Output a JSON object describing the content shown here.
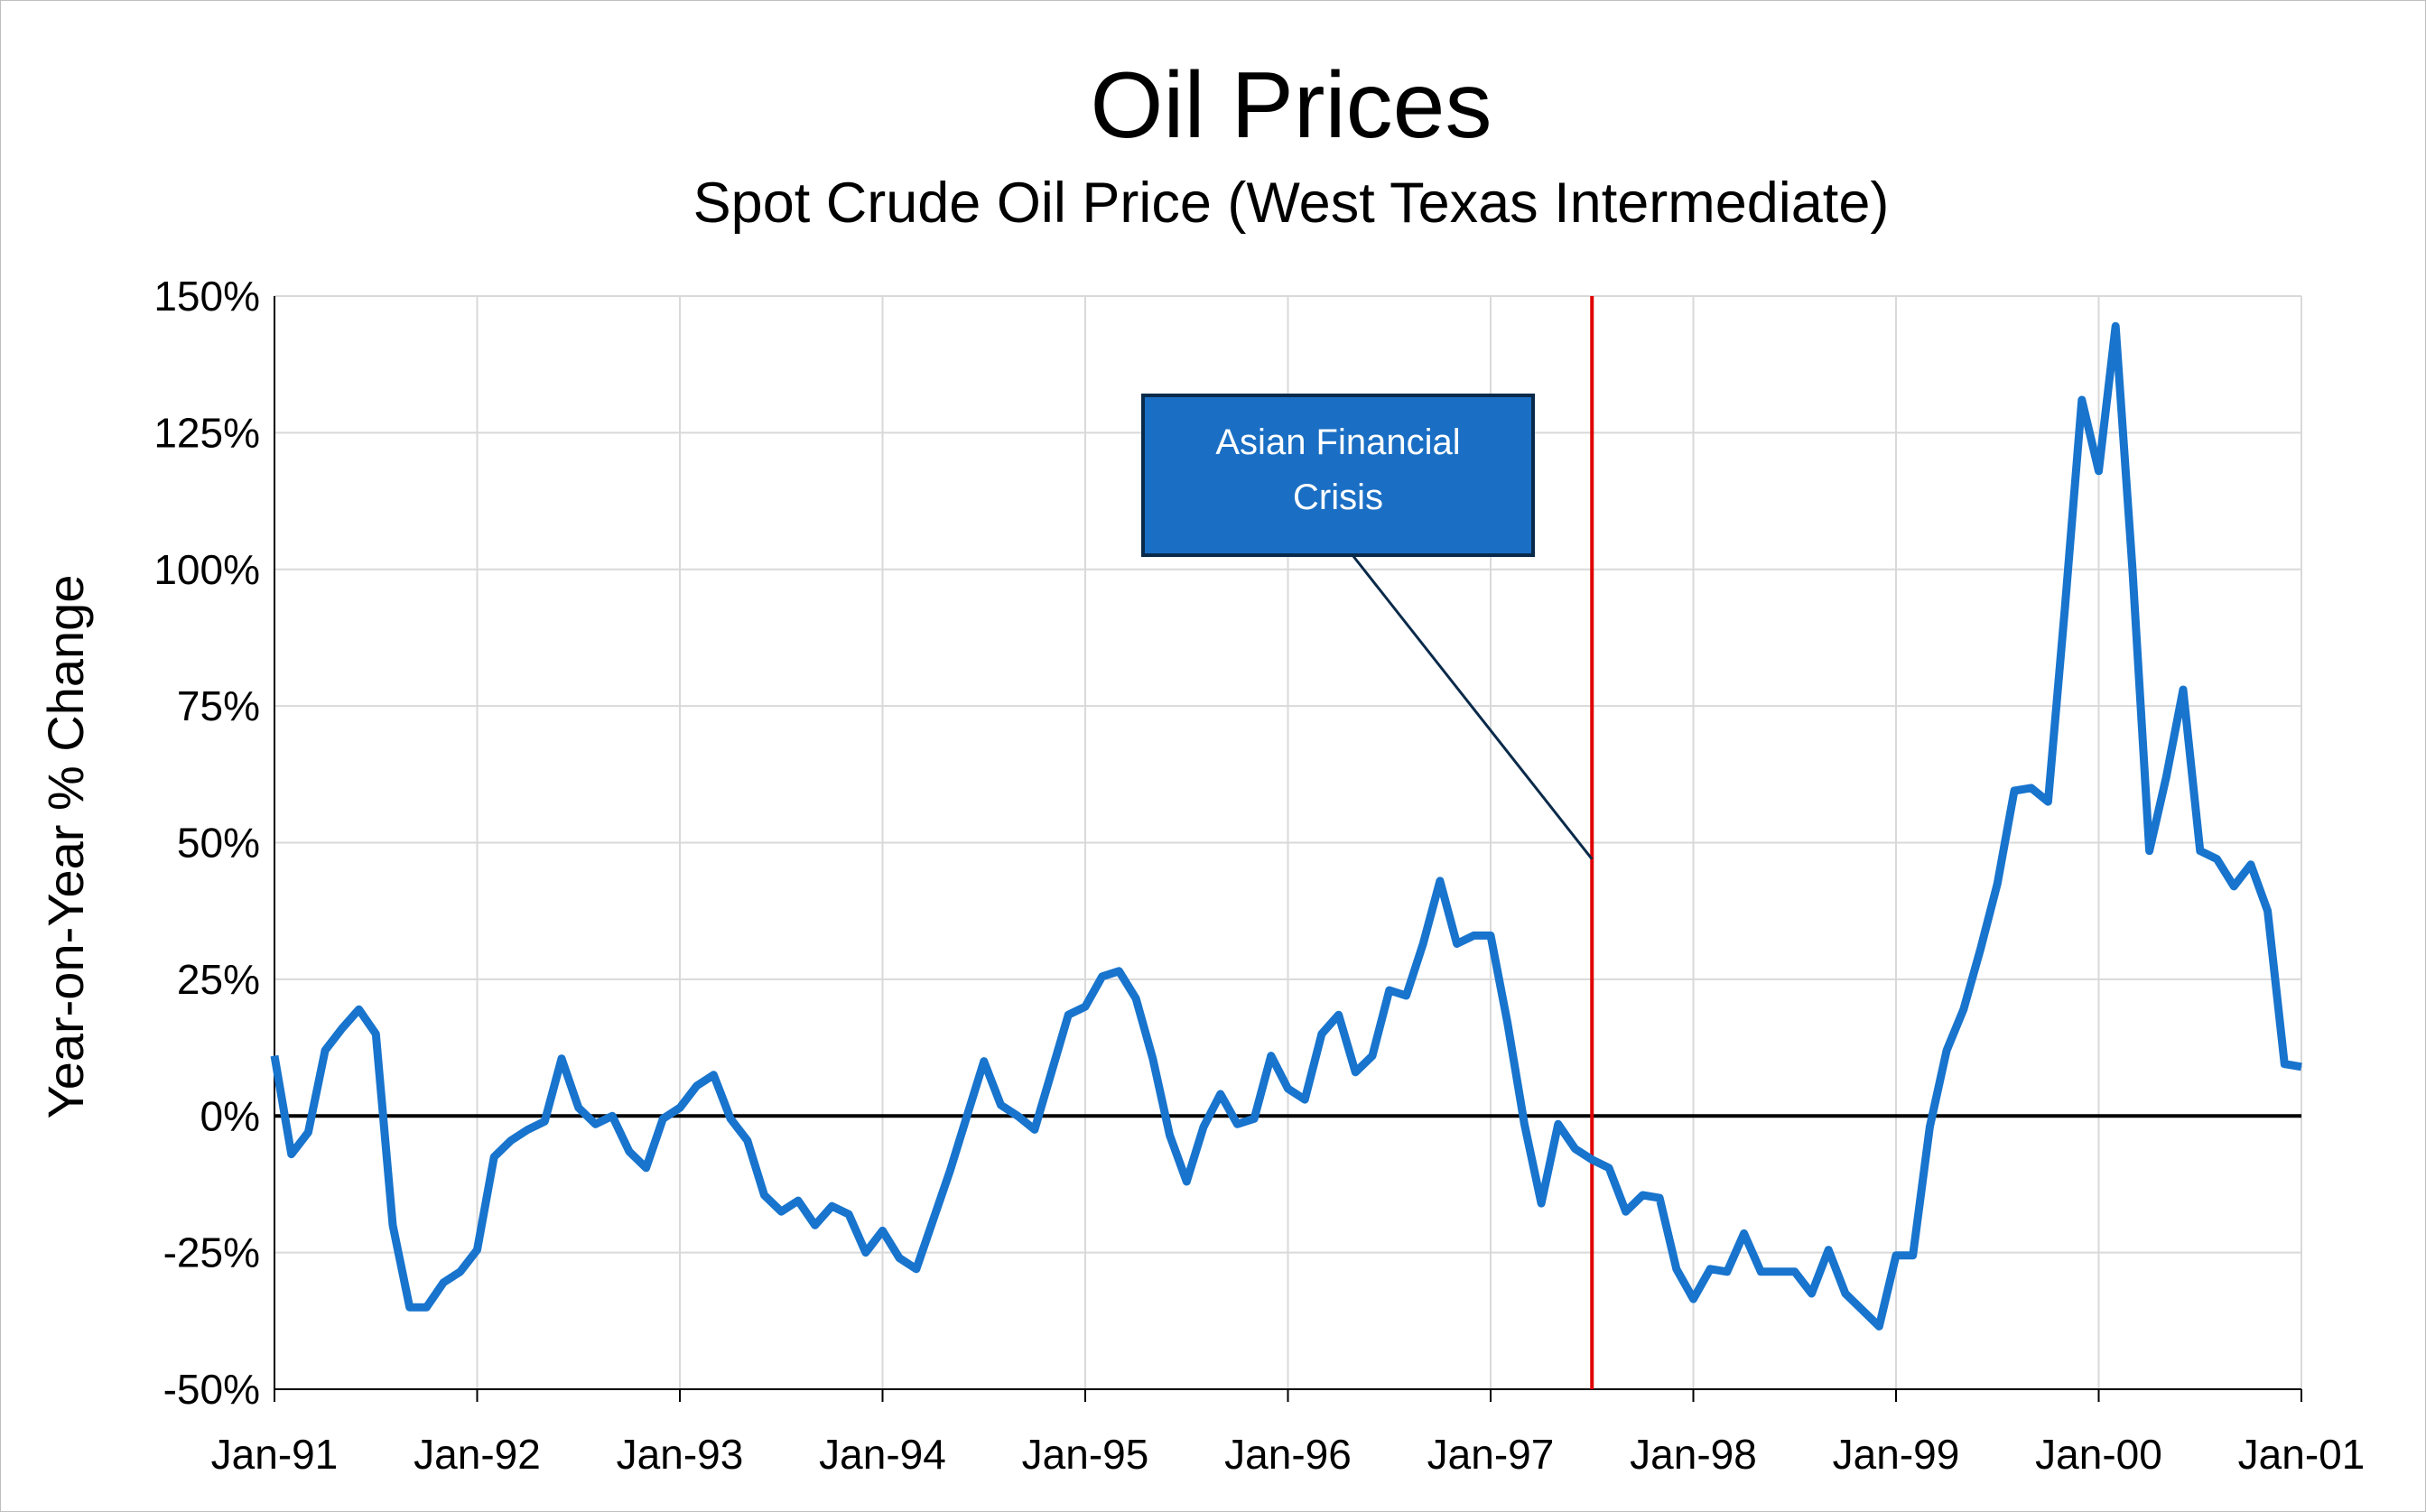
{
  "chart_data": {
    "type": "line",
    "title": "Oil Prices",
    "subtitle": "Spot Crude Oil Price (West Texas Intermediate)",
    "xlabel": "",
    "ylabel": "Year-on-Year % Change",
    "ylim": [
      -50,
      150
    ],
    "y_ticks": [
      -50,
      -25,
      0,
      25,
      50,
      75,
      100,
      125,
      150
    ],
    "y_tick_labels": [
      "-50%",
      "-25%",
      "0%",
      "25%",
      "50%",
      "75%",
      "100%",
      "125%",
      "150%"
    ],
    "x_ticks": [
      "1991-01",
      "1992-01",
      "1993-01",
      "1994-01",
      "1995-01",
      "1996-01",
      "1997-01",
      "1998-01",
      "1999-01",
      "2000-01",
      "2001-01"
    ],
    "x_tick_labels": [
      "Jan-91",
      "Jan-92",
      "Jan-93",
      "Jan-94",
      "Jan-95",
      "Jan-96",
      "Jan-97",
      "Jan-98",
      "Jan-99",
      "Jan-00",
      "Jan-01"
    ],
    "grid": true,
    "legend": "none",
    "colors": {
      "series": "#1874CD",
      "event_line": "#E00000",
      "zero_line": "#000000",
      "grid": "#D9D9D9",
      "annotation_box": "#1A6FC4",
      "annotation_border": "#0A2A4A"
    },
    "x": [
      "1991-01",
      "1991-02",
      "1991-03",
      "1991-04",
      "1991-05",
      "1991-06",
      "1991-07",
      "1991-08",
      "1991-09",
      "1991-10",
      "1991-11",
      "1991-12",
      "1992-01",
      "1992-02",
      "1992-03",
      "1992-04",
      "1992-05",
      "1992-06",
      "1992-07",
      "1992-08",
      "1992-09",
      "1992-10",
      "1992-11",
      "1992-12",
      "1993-01",
      "1993-02",
      "1993-03",
      "1993-04",
      "1993-05",
      "1993-06",
      "1993-07",
      "1993-08",
      "1993-09",
      "1993-10",
      "1993-11",
      "1993-12",
      "1994-01",
      "1994-02",
      "1994-03",
      "1994-04",
      "1994-05",
      "1994-06",
      "1994-07",
      "1994-08",
      "1994-09",
      "1994-10",
      "1994-11",
      "1994-12",
      "1995-01",
      "1995-02",
      "1995-03",
      "1995-04",
      "1995-05",
      "1995-06",
      "1995-07",
      "1995-08",
      "1995-09",
      "1995-10",
      "1995-11",
      "1995-12",
      "1996-01",
      "1996-02",
      "1996-03",
      "1996-04",
      "1996-05",
      "1996-06",
      "1996-07",
      "1996-08",
      "1996-09",
      "1996-10",
      "1996-11",
      "1996-12",
      "1997-01",
      "1997-02",
      "1997-03",
      "1997-04",
      "1997-05",
      "1997-06",
      "1997-07",
      "1997-08",
      "1997-09",
      "1997-10",
      "1997-11",
      "1997-12",
      "1998-01",
      "1998-02",
      "1998-03",
      "1998-04",
      "1998-05",
      "1998-06",
      "1998-07",
      "1998-08",
      "1998-09",
      "1998-10",
      "1998-11",
      "1998-12",
      "1999-01",
      "1999-02",
      "1999-03",
      "1999-04",
      "1999-05",
      "1999-06",
      "1999-07",
      "1999-08",
      "1999-09",
      "1999-10",
      "1999-11",
      "1999-12",
      "2000-01",
      "2000-02",
      "2000-03",
      "2000-04",
      "2000-05",
      "2000-06",
      "2000-07",
      "2000-08",
      "2000-09",
      "2000-10",
      "2000-11",
      "2000-12",
      "2001-01"
    ],
    "series": [
      {
        "values": [
          11,
          -7,
          -3,
          12,
          16,
          19.5,
          15,
          -20,
          -35,
          -35,
          -30.5,
          -28.5,
          -24.5,
          -7.5,
          -4.5,
          -2.5,
          -1,
          10.5,
          1.5,
          -1.5,
          0,
          -6.5,
          -9.5,
          -0.5,
          1.5,
          5.5,
          7.5,
          -0.5,
          -4.5,
          -14.5,
          -17.5,
          -15.5,
          -20,
          -16.5,
          -18,
          -25,
          -21,
          -26,
          -28,
          -19,
          -10,
          0,
          10,
          2,
          0,
          -2.5,
          8,
          18.5,
          20,
          25.5,
          26.5,
          21.5,
          10.5,
          -3.5,
          -12,
          -2,
          4,
          -1.5,
          -0.5,
          11,
          5,
          3,
          15,
          18.5,
          8,
          11,
          23,
          22,
          31.5,
          43,
          31.5,
          33,
          33,
          17,
          -1.5,
          -16,
          -1.5,
          -6,
          -8,
          -9.5,
          -17.5,
          -14.5,
          -15,
          -28,
          -33.5,
          -28,
          -28.5,
          -21.5,
          -28.5,
          -28.5,
          -28.5,
          -32.5,
          -24.5,
          -32.5,
          -35.5,
          -38.5,
          -25.5,
          -25.5,
          -2,
          12,
          19.5,
          30.5,
          42.5,
          59.5,
          60,
          57.5,
          93,
          131,
          118,
          144.5,
          100,
          48.5,
          62,
          78,
          48.5,
          47,
          42,
          46,
          37.5,
          9.5,
          9
        ]
      }
    ],
    "event_line": {
      "x": "1997-07"
    },
    "annotation": {
      "text_line1": "Asian Financial",
      "text_line2": "Crisis",
      "points_to": {
        "x": "1997-07",
        "y": 47
      }
    }
  }
}
